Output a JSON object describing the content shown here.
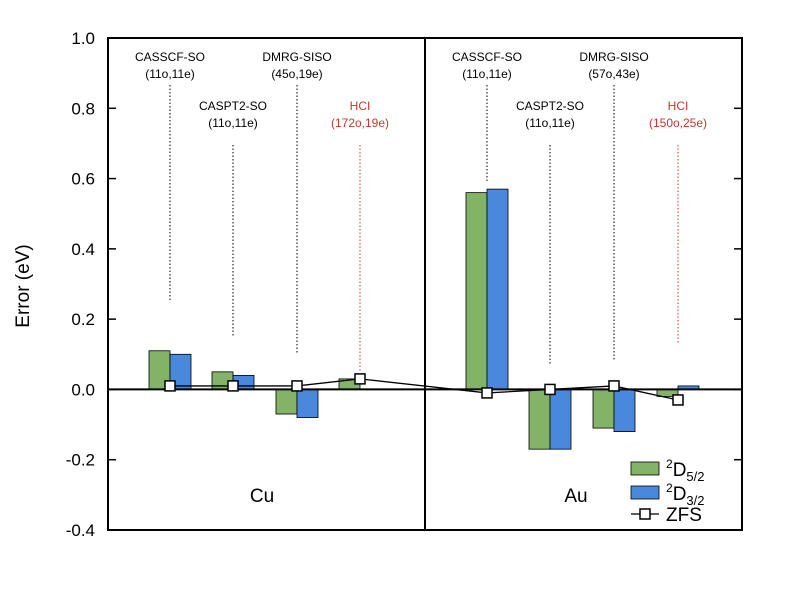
{
  "chart_data": {
    "type": "bar",
    "ylabel": "Error (eV)",
    "ylim": [
      -0.4,
      1.0
    ],
    "yticks": [
      1.0,
      0.8,
      0.6,
      0.4,
      0.2,
      0.0,
      -0.2,
      -0.4
    ],
    "ytick_labels": [
      "1.0",
      "0.8",
      "0.6",
      "0.4",
      "0.2",
      "0.0",
      "-0.2",
      "-0.4"
    ],
    "legend": {
      "position": "bottom-right",
      "entries": [
        {
          "base": "D",
          "sup": "2",
          "sub": "5/2",
          "kind": "bar",
          "color": "#82b366"
        },
        {
          "base": "D",
          "sup": "2",
          "sub": "3/2",
          "kind": "bar",
          "color": "#4a88de"
        },
        {
          "text": "ZFS",
          "kind": "line-square",
          "color": "#000000"
        }
      ]
    },
    "colors": {
      "d52": "#82b366",
      "d32": "#4a88de",
      "zfs": "#000000",
      "hci": "#c0392b",
      "guide": "#000000"
    },
    "panels": [
      {
        "element": "Cu",
        "methods": [
          {
            "name": "CASSCF-SO",
            "space": "(11o,11e)",
            "d52": 0.11,
            "d32": 0.1,
            "zfs": 0.01,
            "guide_top": 0.25,
            "label_row": "upper",
            "highlight": false
          },
          {
            "name": "CASPT2-SO",
            "space": "(11o,11e)",
            "d52": 0.05,
            "d32": 0.04,
            "zfs": 0.01,
            "guide_top": 0.15,
            "label_row": "lower",
            "highlight": false
          },
          {
            "name": "DMRG-SISO",
            "space": "(45o,19e)",
            "d52": -0.07,
            "d32": -0.08,
            "zfs": 0.01,
            "guide_top": 0.1,
            "label_row": "upper",
            "highlight": false
          },
          {
            "name": "HCI",
            "space": "(172o,19e)",
            "d52": 0.03,
            "d32": 0.0,
            "zfs": 0.03,
            "guide_top": 0.05,
            "label_row": "lower",
            "highlight": true
          }
        ]
      },
      {
        "element": "Au",
        "methods": [
          {
            "name": "CASSCF-SO",
            "space": "(11o,11e)",
            "d52": 0.56,
            "d32": 0.57,
            "zfs": -0.01,
            "guide_top": 0.59,
            "label_row": "upper",
            "highlight": false
          },
          {
            "name": "CASPT2-SO",
            "space": "(11o,11e)",
            "d52": -0.17,
            "d32": -0.17,
            "zfs": 0.0,
            "guide_top": 0.07,
            "label_row": "lower",
            "highlight": false
          },
          {
            "name": "DMRG-SISO",
            "space": "(57o,43e)",
            "d52": -0.11,
            "d32": -0.12,
            "zfs": 0.01,
            "guide_top": 0.08,
            "label_row": "upper",
            "highlight": false
          },
          {
            "name": "HCI",
            "space": "(150o,25e)",
            "d52": -0.02,
            "d32": 0.01,
            "zfs": -0.03,
            "guide_top": 0.13,
            "label_row": "lower",
            "highlight": true
          }
        ]
      }
    ]
  }
}
